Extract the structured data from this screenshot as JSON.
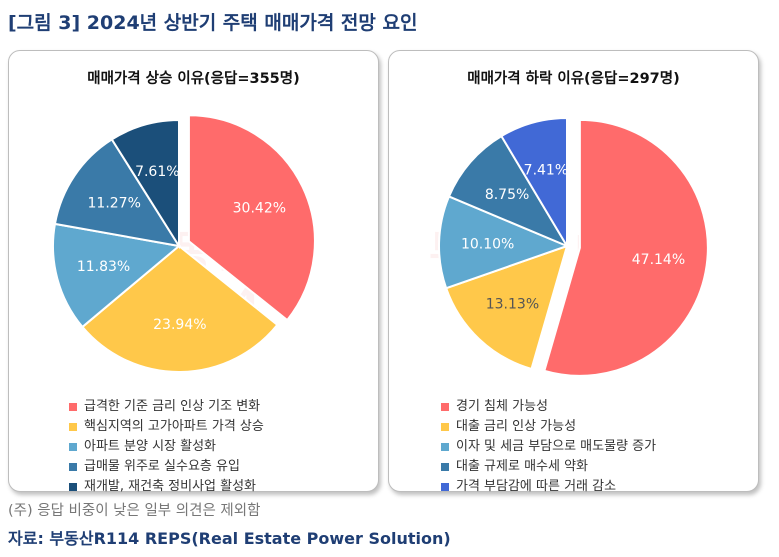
{
  "figure_title": "[그림 3] 2024년 상반기 주택 매매가격 전망 요인",
  "footnote": "(주) 응답 비중이 낮은 일부 의견은 제외함",
  "source": "자료: 부동산R114 REPS(Real Estate Power Solution)",
  "watermark": "부동산 R114",
  "chart_data": [
    {
      "type": "pie",
      "title": "매매가격 상승 이유(응답=355명)",
      "labels": [
        "급격한 기준 금리 인상 기조 변화",
        "핵심지역의 고가아파트 가격 상승",
        "아파트 분양 시장 활성화",
        "급매물 위주로 실수요층 유입",
        "재개발, 재건축 정비사업 활성화"
      ],
      "values": [
        30.42,
        23.94,
        11.83,
        11.27,
        7.61
      ],
      "value_labels": [
        "30.42%",
        "23.94%",
        "11.83%",
        "11.27%",
        "7.61%"
      ],
      "colors": [
        "#ff6b6b",
        "#ffc84a",
        "#5fa8cf",
        "#3a7aa8",
        "#1b4f7a"
      ],
      "label_colors": [
        "#ffffff",
        "#ffffff",
        "#ffffff",
        "#ffffff",
        "#ffffff"
      ],
      "exploded": [
        0
      ],
      "legend_position": "bottom"
    },
    {
      "type": "pie",
      "title": "매매가격 하락 이유(응답=297명)",
      "labels": [
        "경기 침체 가능성",
        "대출 금리 인상 가능성",
        "이자 및 세금 부담으로 매도물량 증가",
        "대출 규제로 매수세 약화",
        "가격 부담감에 따른 거래 감소"
      ],
      "values": [
        47.14,
        13.13,
        10.1,
        8.75,
        7.41
      ],
      "value_labels": [
        "47.14%",
        "13.13%",
        "10.10%",
        "8.75%",
        "7.41%"
      ],
      "colors": [
        "#ff6b6b",
        "#ffc84a",
        "#5fa8cf",
        "#3a7aa8",
        "#4169d6"
      ],
      "label_colors": [
        "#ffffff",
        "#555555",
        "#ffffff",
        "#ffffff",
        "#ffffff"
      ],
      "exploded": [
        0
      ],
      "legend_position": "bottom"
    }
  ]
}
